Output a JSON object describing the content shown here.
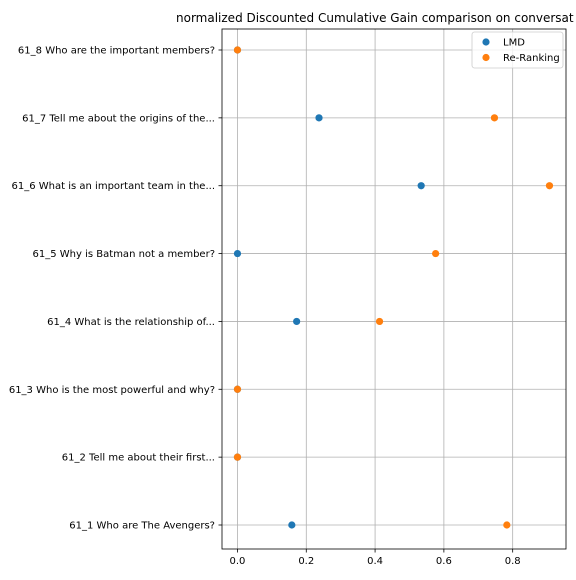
{
  "chart_data": {
    "type": "scatter",
    "title": "normalized Discounted Cumulative Gain comparison on conversat",
    "xlabel": "",
    "ylabel": "",
    "xlim": [
      -0.045,
      0.955
    ],
    "x_ticks": [
      0.0,
      0.2,
      0.4,
      0.6,
      0.8
    ],
    "x_tick_labels": [
      "0.0",
      "0.2",
      "0.4",
      "0.6",
      "0.8"
    ],
    "grid": true,
    "legend": {
      "placement": "top-right"
    },
    "categories": [
      "61_1 Who are The Avengers?",
      "61_2 Tell me about their first...",
      "61_3 Who is the most powerful and why?",
      "61_4 What is the relationship of...",
      "61_5 Why is Batman not a member?",
      "61_6 What is an important team in the...",
      "61_7 Tell me about the origins of the...",
      "61_8 Who are the important members?"
    ],
    "series": [
      {
        "name": "LMD",
        "color": "#1f77b4",
        "values": [
          0.158,
          0.0,
          0.0,
          0.172,
          0.0,
          0.534,
          0.237,
          0.0
        ]
      },
      {
        "name": "Re-Ranking",
        "color": "#ff7f0e",
        "values": [
          0.783,
          0.0,
          0.0,
          0.413,
          0.576,
          0.907,
          0.747,
          0.0
        ]
      }
    ]
  }
}
